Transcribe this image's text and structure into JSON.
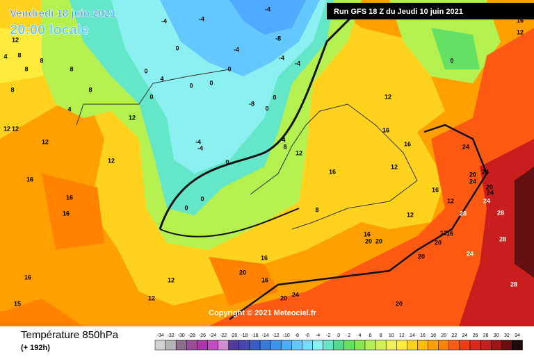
{
  "header": {
    "date": "Vendredi 18 juin 2021",
    "time": "20:00 locale",
    "run": "Run GFS 18 Z du Jeudi 10 juin 2021"
  },
  "copyright": "Copyright © 2021 Meteociel.fr",
  "footer": {
    "title": "Température 850hPa",
    "subtitle": "(+ 192h)"
  },
  "scale": {
    "values": [
      -34,
      -32,
      -30,
      -28,
      -26,
      -24,
      -22,
      -20,
      -18,
      -16,
      -14,
      -12,
      -10,
      -8,
      -6,
      -4,
      -2,
      0,
      2,
      4,
      6,
      8,
      10,
      12,
      14,
      16,
      18,
      20,
      22,
      24,
      26,
      28,
      30,
      32,
      34
    ],
    "colors": [
      "#d2d2d2",
      "#b4b4b4",
      "#8c6e8c",
      "#9a4e9a",
      "#a83aa8",
      "#c050c0",
      "#d28cd2",
      "#503ca0",
      "#4646b4",
      "#3c5ac8",
      "#3c78dc",
      "#3c96f0",
      "#50aaff",
      "#64c8ff",
      "#78dcff",
      "#8cf0f0",
      "#64e6c8",
      "#50dc8c",
      "#64e164",
      "#8ce650",
      "#b4f050",
      "#d2f050",
      "#f0f05a",
      "#ffeb3c",
      "#ffd21e",
      "#ffbe00",
      "#ffa000",
      "#ff8200",
      "#ff5a14",
      "#f03c1e",
      "#dc281e",
      "#c81e1e",
      "#a01414",
      "#641010",
      "#1e0a0a"
    ]
  },
  "map_labels": [
    12,
    4,
    8,
    8,
    8,
    8,
    8,
    4,
    8,
    12,
    12,
    12,
    16,
    16,
    16,
    16,
    15,
    0,
    4,
    0,
    0,
    0,
    0,
    0,
    -4,
    -4,
    -4,
    -4,
    -8,
    -4,
    -4,
    -8,
    0,
    0,
    -4,
    -4,
    0,
    0,
    0,
    12,
    12,
    12,
    12,
    16,
    20,
    16,
    20,
    24,
    12,
    16,
    12,
    16,
    12,
    16,
    16,
    12,
    12,
    24,
    20,
    24,
    24,
    20,
    24,
    28,
    28,
    24,
    28,
    20,
    20,
    24,
    28,
    20,
    20,
    20,
    16,
    0,
    16,
    12,
    8,
    4,
    8,
    12,
    16
  ]
}
